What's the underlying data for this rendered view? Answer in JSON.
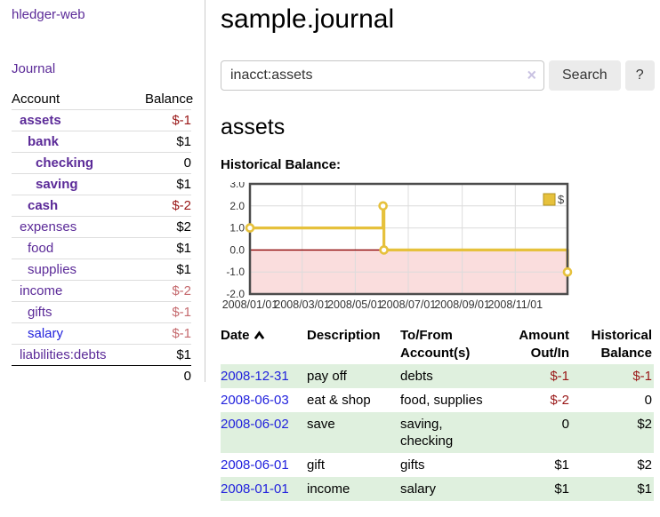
{
  "app": {
    "title": "hledger-web",
    "nav_journal": "Journal"
  },
  "sidebar": {
    "accounts_header": {
      "account": "Account",
      "balance": "Balance"
    },
    "accounts": [
      {
        "name": "assets",
        "balance": "$-1",
        "indent": 1,
        "bold": true,
        "link_color": "purple",
        "balance_color": "neg-strong"
      },
      {
        "name": "bank",
        "balance": "$1",
        "indent": 2,
        "bold": true,
        "link_color": "purple",
        "balance_color": "normal"
      },
      {
        "name": "checking",
        "balance": "0",
        "indent": 3,
        "bold": true,
        "link_color": "purple",
        "balance_color": "normal"
      },
      {
        "name": "saving",
        "balance": "$1",
        "indent": 3,
        "bold": true,
        "link_color": "purple",
        "balance_color": "normal"
      },
      {
        "name": "cash",
        "balance": "$-2",
        "indent": 2,
        "bold": true,
        "link_color": "purple",
        "balance_color": "neg-strong"
      },
      {
        "name": "expenses",
        "balance": "$2",
        "indent": 1,
        "bold": false,
        "link_color": "purple",
        "balance_color": "normal"
      },
      {
        "name": "food",
        "balance": "$1",
        "indent": 2,
        "bold": false,
        "link_color": "purple",
        "balance_color": "normal"
      },
      {
        "name": "supplies",
        "balance": "$1",
        "indent": 2,
        "bold": false,
        "link_color": "purple",
        "balance_color": "normal"
      },
      {
        "name": "income",
        "balance": "$-2",
        "indent": 1,
        "bold": false,
        "link_color": "purple",
        "balance_color": "neg-soft"
      },
      {
        "name": "gifts",
        "balance": "$-1",
        "indent": 2,
        "bold": false,
        "link_color": "purple",
        "balance_color": "neg-soft"
      },
      {
        "name": "salary",
        "balance": "$-1",
        "indent": 2,
        "bold": false,
        "link_color": "blue",
        "balance_color": "neg-soft"
      },
      {
        "name": "liabilities:debts",
        "balance": "$1",
        "indent": 1,
        "bold": false,
        "link_color": "purple",
        "balance_color": "normal"
      }
    ],
    "total": "0"
  },
  "header": {
    "title": "sample.journal"
  },
  "search": {
    "value": "inacct:assets",
    "clear_icon": "×",
    "button": "Search",
    "help_button": "?"
  },
  "account_page": {
    "title": "assets",
    "chart_label": "Historical Balance:"
  },
  "chart_data": {
    "type": "line",
    "title": "Historical Balance",
    "step": "post",
    "markers": true,
    "series": [
      {
        "name": "$",
        "points": [
          [
            "2008-01-01",
            1
          ],
          [
            "2008-06-02",
            2
          ],
          [
            "2008-06-03",
            0
          ],
          [
            "2008-12-31",
            -1
          ]
        ]
      }
    ],
    "xlim": [
      "2008-01-01",
      "2008-12-31"
    ],
    "ylim": [
      -2,
      3
    ],
    "ytick_labels": [
      "3.0",
      "2.0",
      "1.0",
      "0.0",
      "-1.0",
      "-2.0"
    ],
    "xtick_labels": [
      "2008/01/01",
      "2008/03/01",
      "2008/05/01",
      "2008/07/01",
      "2008/09/01",
      "2008/11/01"
    ],
    "legend": [
      {
        "label": "$",
        "color": "#e6c13c"
      }
    ],
    "legend_position": "top-right",
    "grid": true,
    "line_color": "#e6c13c",
    "marker_fill": "#ffffff",
    "zero_line_color": "#8b0000",
    "negative_region_color": "#fadddd",
    "grid_color": "#dcdcdc",
    "border_color": "#4c4c4c",
    "tick_text_color": "#333333"
  },
  "register": {
    "columns": [
      "Date",
      "Description",
      "To/From Account(s)",
      "Amount Out/In",
      "Historical Balance"
    ],
    "sort": {
      "column": "Date",
      "direction": "ascending"
    },
    "rows": [
      {
        "date": "2008-12-31",
        "description": "pay off",
        "accounts": "debts",
        "amount": "$-1",
        "amount_color": "neg-strong",
        "balance": "$-1",
        "balance_color": "neg-strong",
        "shaded": true
      },
      {
        "date": "2008-06-03",
        "description": "eat & shop",
        "accounts": "food, supplies",
        "amount": "$-2",
        "amount_color": "neg-strong",
        "balance": "0",
        "balance_color": "normal",
        "shaded": false
      },
      {
        "date": "2008-06-02",
        "description": "save",
        "accounts": "saving, checking",
        "amount": "0",
        "amount_color": "normal",
        "balance": "$2",
        "balance_color": "normal",
        "shaded": true
      },
      {
        "date": "2008-06-01",
        "description": "gift",
        "accounts": "gifts",
        "amount": "$1",
        "amount_color": "normal",
        "balance": "$2",
        "balance_color": "normal",
        "shaded": false
      },
      {
        "date": "2008-01-01",
        "description": "income",
        "accounts": "salary",
        "amount": "$1",
        "amount_color": "normal",
        "balance": "$1",
        "balance_color": "normal",
        "shaded": true
      }
    ]
  },
  "colors": {
    "link_purple": "#5b2a98",
    "link_blue": "#2222dd",
    "negative_strong": "#991717",
    "negative_soft": "#c56a6e",
    "row_green": "#dff0de",
    "chart_gold": "#e6c13c",
    "chart_pink": "#fadddd"
  }
}
